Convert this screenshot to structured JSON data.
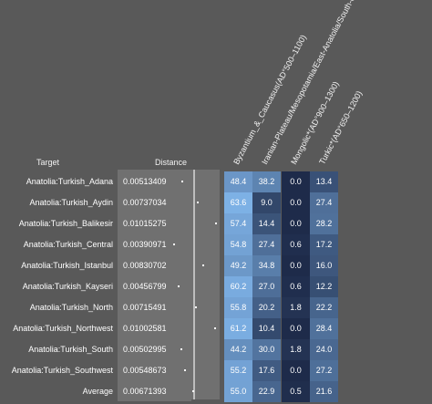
{
  "chart_data": {
    "type": "heatmap",
    "headers": {
      "target": "Target",
      "distance": "Distance"
    },
    "columns": [
      "Byzantium_&_Caucasus(AD°500–1100)",
      "Iranian-Plateau/Mesopotamia/East-Anatolia/South-Caucasus",
      "Mongolic*(AD°900–1300)",
      "Turkic*(AD°650–1200)"
    ],
    "rows": [
      {
        "target": "Anatolia:Turkish_Adana",
        "distance": "0.00513409",
        "values": [
          "48.4",
          "38.2",
          "0.0",
          "13.4"
        ]
      },
      {
        "target": "Anatolia:Turkish_Aydin",
        "distance": "0.00737034",
        "values": [
          "63.6",
          "9.0",
          "0.0",
          "27.4"
        ]
      },
      {
        "target": "Anatolia:Turkish_Balikesir",
        "distance": "0.01015275",
        "values": [
          "57.4",
          "14.4",
          "0.0",
          "28.2"
        ]
      },
      {
        "target": "Anatolia:Turkish_Central",
        "distance": "0.00390971",
        "values": [
          "54.8",
          "27.4",
          "0.6",
          "17.2"
        ]
      },
      {
        "target": "Anatolia:Turkish_Istanbul",
        "distance": "0.00830702",
        "values": [
          "49.2",
          "34.8",
          "0.0",
          "16.0"
        ]
      },
      {
        "target": "Anatolia:Turkish_Kayseri",
        "distance": "0.00456799",
        "values": [
          "60.2",
          "27.0",
          "0.6",
          "12.2"
        ]
      },
      {
        "target": "Anatolia:Turkish_North",
        "distance": "0.00715491",
        "values": [
          "55.8",
          "20.2",
          "1.8",
          "22.2"
        ]
      },
      {
        "target": "Anatolia:Turkish_Northwest",
        "distance": "0.01002581",
        "values": [
          "61.2",
          "10.4",
          "0.0",
          "28.4"
        ]
      },
      {
        "target": "Anatolia:Turkish_South",
        "distance": "0.00502995",
        "values": [
          "44.2",
          "30.0",
          "1.8",
          "24.0"
        ]
      },
      {
        "target": "Anatolia:Turkish_Southwest",
        "distance": "0.00548673",
        "values": [
          "55.2",
          "17.6",
          "0.0",
          "27.2"
        ]
      },
      {
        "target": "Average",
        "distance": "0.00671393",
        "values": [
          "55.0",
          "22.9",
          "0.5",
          "21.6"
        ]
      }
    ],
    "color_scale": {
      "low": "#1e2b4a",
      "high": "#7fb3e8"
    }
  }
}
